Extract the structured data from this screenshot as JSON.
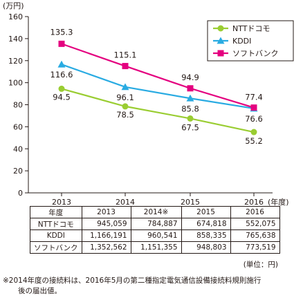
{
  "chart_data": {
    "type": "line",
    "x": [
      "2013",
      "2014",
      "2015",
      "2016"
    ],
    "series": [
      {
        "name": "NTTドコモ",
        "values": [
          94.5,
          78.5,
          67.5,
          55.2
        ],
        "color": "#9ACD32",
        "marker": "circle"
      },
      {
        "name": "KDDI",
        "values": [
          116.6,
          96.1,
          85.8,
          76.6
        ],
        "color": "#29ABE2",
        "marker": "triangle"
      },
      {
        "name": "ソフトバンク",
        "values": [
          135.3,
          115.1,
          94.9,
          77.4
        ],
        "color": "#E4007F",
        "marker": "square"
      }
    ],
    "ylim": [
      0,
      160
    ],
    "yticks": [
      0,
      20,
      40,
      60,
      80,
      100,
      120,
      140,
      160
    ],
    "yunit": "(万円)",
    "xunit": "(年度)",
    "legend": "top-right",
    "grid": false
  },
  "table": {
    "header": [
      "年度",
      "2013",
      "2014※",
      "2015",
      "2016"
    ],
    "rows": [
      [
        "NTTドコモ",
        "945,059",
        "784,887",
        "674,818",
        "552,075"
      ],
      [
        "KDDI",
        "1,166,191",
        "960,541",
        "858,335",
        "765,638"
      ],
      [
        "ソフトバンク",
        "1,352,562",
        "1,151,355",
        "948,803",
        "773,519"
      ]
    ],
    "unit": "(単位：円)"
  },
  "footnote": {
    "line1": "※2014年度の接続料は、2016年5月の第二種指定電気通信設備接続料規則施行",
    "line2": "後の届出値。"
  }
}
